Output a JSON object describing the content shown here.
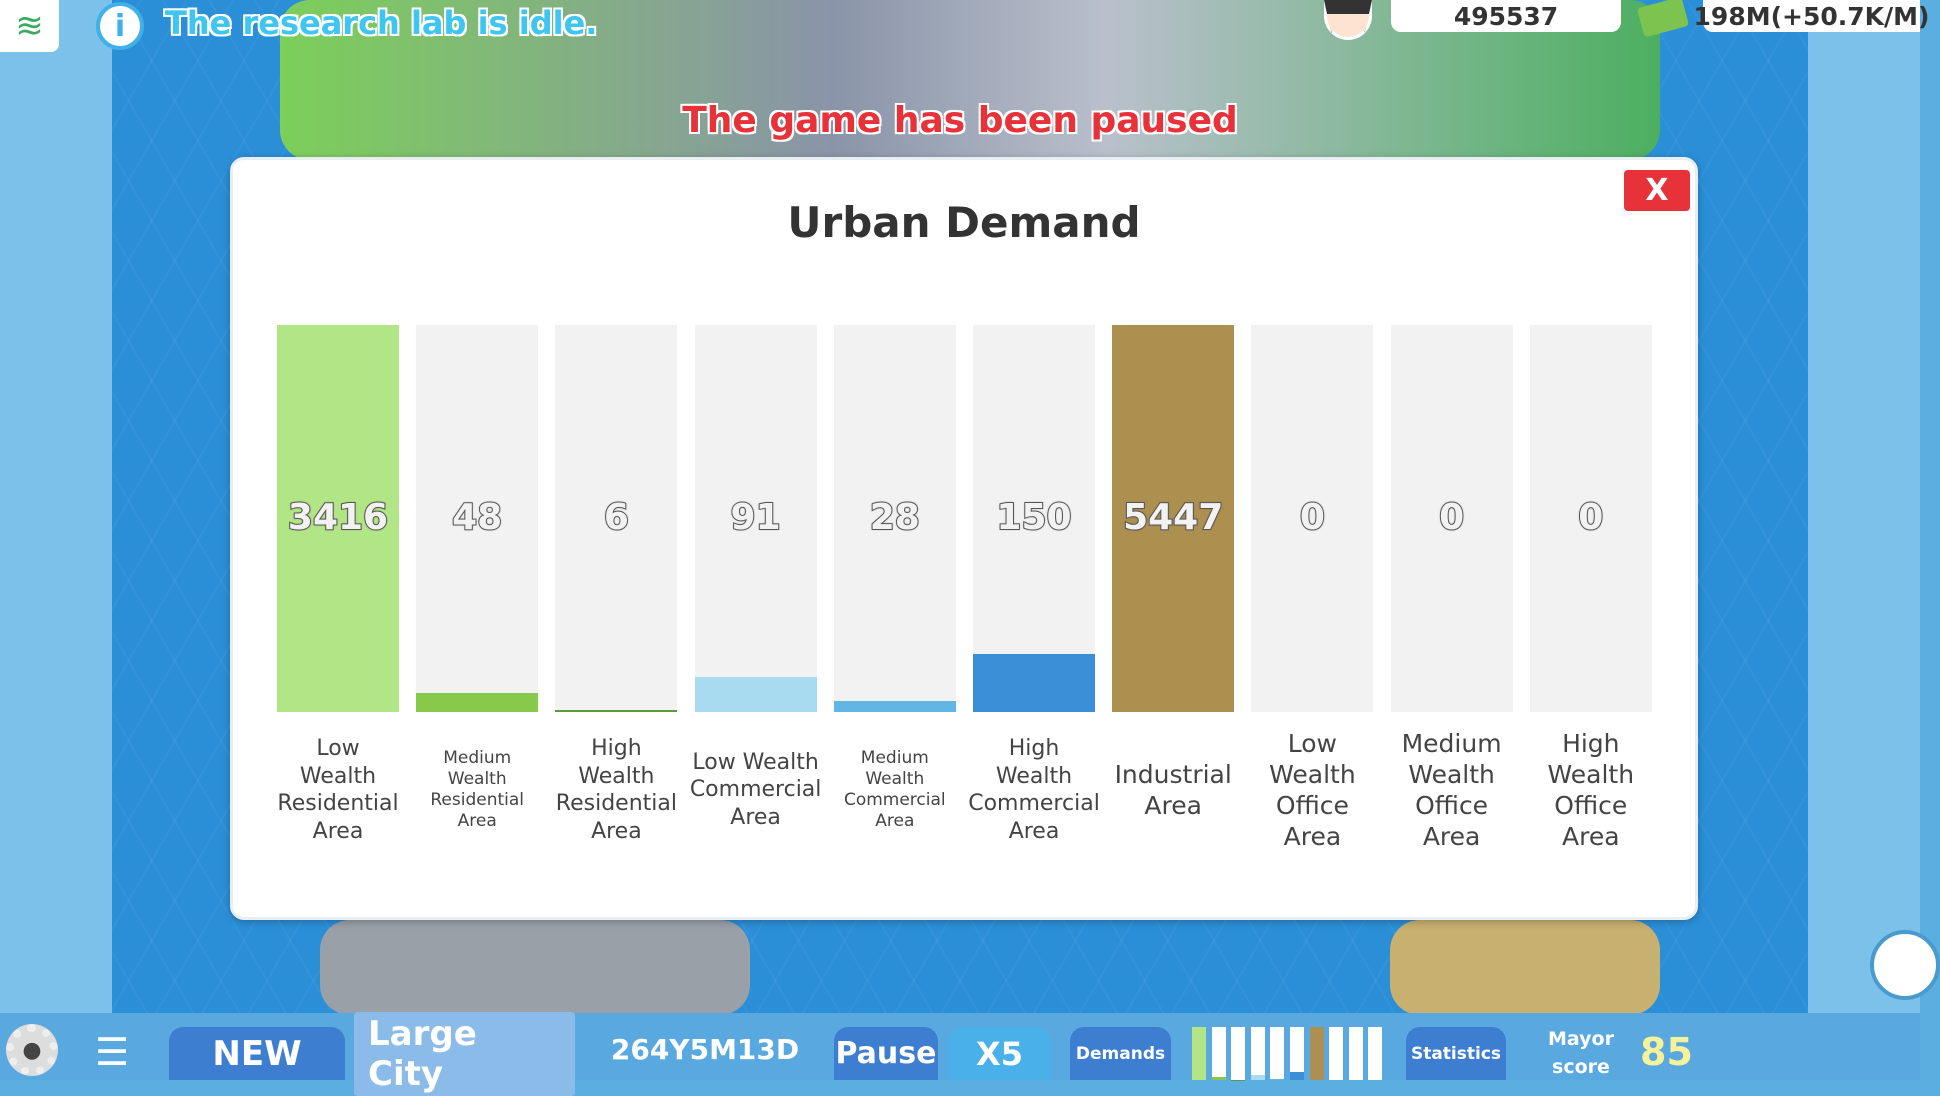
{
  "top": {
    "research_status": "The research lab is idle.",
    "paused_message": "The game has been paused",
    "population": "495537",
    "money": "198M(+50.7K/M)"
  },
  "modal": {
    "title": "Urban Demand",
    "close_label": "X",
    "bars": [
      {
        "label": "Low Wealth Residential Area",
        "value": "3416",
        "fill": 1.0,
        "color": "#b2e585",
        "small": false
      },
      {
        "label": "Medium Wealth Residential Area",
        "value": "48",
        "fill": 0.048,
        "color": "#86c94b",
        "small": true
      },
      {
        "label": "High Wealth Residential Area",
        "value": "6",
        "fill": 0.006,
        "color": "#5e9b3a",
        "small": false
      },
      {
        "label": "Low Wealth Commercial Area",
        "value": "91",
        "fill": 0.091,
        "color": "#a8dbf0",
        "small": false
      },
      {
        "label": "Medium Wealth Commercial Area",
        "value": "28",
        "fill": 0.028,
        "color": "#62b6e4",
        "small": true
      },
      {
        "label": "High Wealth Commercial Area",
        "value": "150",
        "fill": 0.15,
        "color": "#3a8fd6",
        "small": false
      },
      {
        "label": "Industrial Area",
        "value": "5447",
        "fill": 1.0,
        "color": "#ad8f50",
        "small": false,
        "big": true
      },
      {
        "label": "Low Wealth Office Area",
        "value": "0",
        "fill": 0,
        "color": "#cccccc",
        "small": false,
        "big": true
      },
      {
        "label": "Medium Wealth Office Area",
        "value": "0",
        "fill": 0,
        "color": "#cccccc",
        "small": false,
        "big": true
      },
      {
        "label": "High Wealth Office Area",
        "value": "0",
        "fill": 0,
        "color": "#cccccc",
        "small": false,
        "big": true
      }
    ]
  },
  "bottom": {
    "new_label": "NEW",
    "city_size": "Large City",
    "date": "264Y5M13D",
    "pause_label": "Pause",
    "speed_label": "X5",
    "demands_label": "Demands",
    "statistics_label": "Statistics",
    "mayor_score_label": "Mayor score",
    "mayor_score": "85"
  }
}
